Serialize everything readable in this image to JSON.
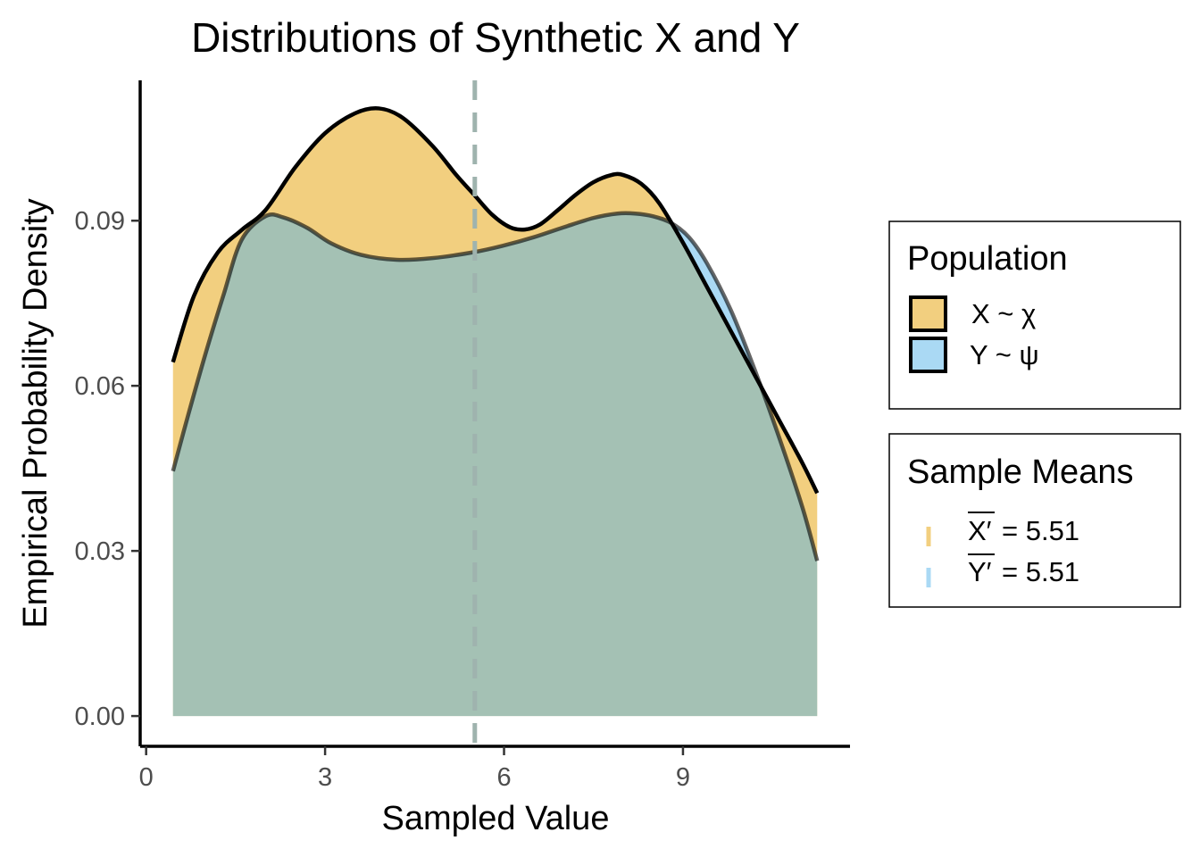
{
  "chart_data": {
    "type": "area",
    "title": "Distributions of Synthetic X and Y",
    "xlabel": "Sampled Value",
    "ylabel": "Empirical Probability Density",
    "xlim": [
      -0.1,
      11.8
    ],
    "ylim": [
      -0.0055,
      0.1155
    ],
    "x_ticks": [
      0,
      3,
      6,
      9
    ],
    "x_tick_labels": [
      "0",
      "3",
      "6",
      "9"
    ],
    "y_ticks": [
      0,
      0.03,
      0.06,
      0.09
    ],
    "y_tick_labels": [
      "0.00",
      "0.03",
      "0.06",
      "0.09"
    ],
    "grid": false,
    "legend_position": "right",
    "series": [
      {
        "key": "x",
        "color": "#E69F00",
        "x": [
          0.45,
          0.8,
          1.2,
          1.6,
          2.0,
          2.5,
          3.0,
          3.5,
          3.9,
          4.3,
          4.8,
          5.2,
          5.5,
          5.8,
          6.1,
          6.35,
          6.6,
          6.9,
          7.2,
          7.5,
          7.8,
          8.0,
          8.3,
          8.6,
          9.0,
          9.4,
          9.8,
          10.2,
          10.6,
          11.0,
          11.25
        ],
        "y": [
          0.0643,
          0.0763,
          0.0842,
          0.0883,
          0.0919,
          0.0997,
          0.1059,
          0.1095,
          0.1104,
          0.1087,
          0.1036,
          0.0983,
          0.0947,
          0.0911,
          0.0888,
          0.0884,
          0.0893,
          0.0919,
          0.0947,
          0.097,
          0.0983,
          0.0983,
          0.0967,
          0.0932,
          0.086,
          0.078,
          0.07,
          0.062,
          0.054,
          0.046,
          0.0405
        ]
      },
      {
        "key": "y",
        "color": "#56B4E9",
        "x": [
          0.45,
          0.7,
          1.0,
          1.3,
          1.6,
          2.0,
          2.3,
          2.7,
          3.1,
          3.6,
          4.2,
          4.8,
          5.5,
          6.0,
          6.5,
          7.0,
          7.5,
          7.9,
          8.2,
          8.5,
          8.8,
          9.1,
          9.4,
          9.8,
          10.2,
          10.6,
          11.0,
          11.25
        ],
        "y": [
          0.0445,
          0.0545,
          0.066,
          0.0766,
          0.0865,
          0.0908,
          0.0906,
          0.0887,
          0.0859,
          0.0838,
          0.0829,
          0.0832,
          0.0843,
          0.0855,
          0.087,
          0.0888,
          0.0905,
          0.0913,
          0.0913,
          0.0908,
          0.0896,
          0.087,
          0.0823,
          0.0738,
          0.063,
          0.051,
          0.038,
          0.0282
        ]
      }
    ],
    "mean_line": {
      "x": 5.51,
      "color": "#9fb3ae"
    },
    "legend": {
      "population_title": "Population",
      "population_items": [
        {
          "key": "x",
          "label": "X ~ χ",
          "color": "#E69F00"
        },
        {
          "key": "y",
          "label": "Y ~ ψ",
          "color": "#56B4E9"
        }
      ],
      "means_title": "Sample Means",
      "means_items": [
        {
          "key": "x",
          "symbol": "X′",
          "value": "= 5.51",
          "color": "#E69F00"
        },
        {
          "key": "y",
          "symbol": "Y′",
          "value": "= 5.51",
          "color": "#56B4E9"
        }
      ]
    }
  }
}
